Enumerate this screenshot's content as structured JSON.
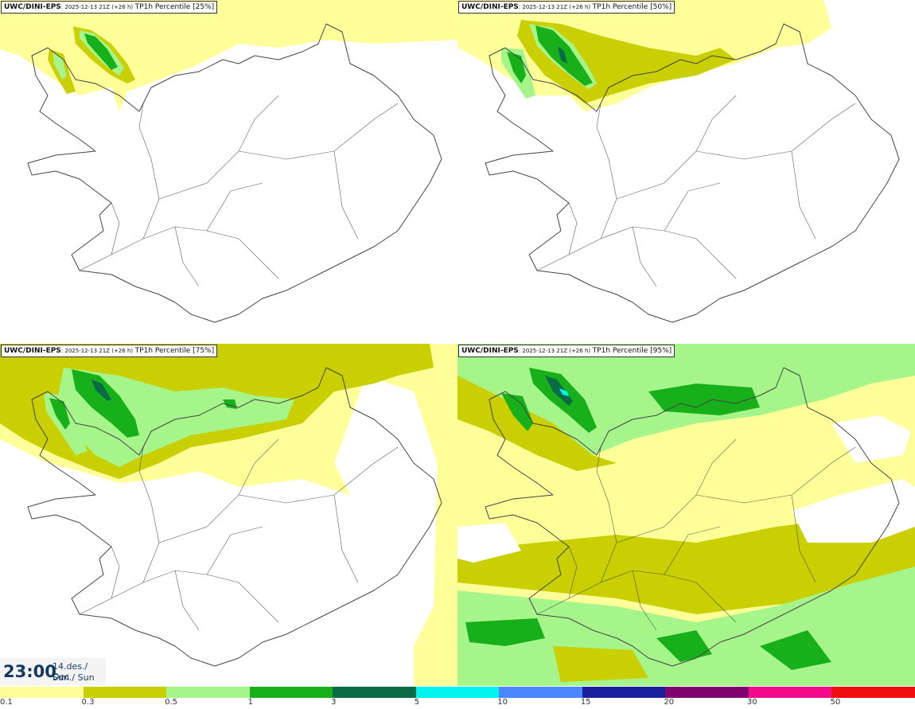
{
  "panels": [
    {
      "model": "UWC/DINI-EPS",
      "run": ": 2025-12-13 21Z (+26 h)",
      "label": "TP1h Percentile [25%]"
    },
    {
      "model": "UWC/DINI-EPS",
      "run": ": 2025-12-13 21Z (+26 h)",
      "label": "TP1h Percentile [50%]"
    },
    {
      "model": "UWC/DINI-EPS",
      "run": ": 2025-12-13 21Z (+26 h)",
      "label": "TP1h Percentile [75%]"
    },
    {
      "model": "UWC/DINI-EPS",
      "run": ": 2025-12-13 21Z (+26 h)",
      "label": "TP1h Percentile [95%]"
    }
  ],
  "clock": {
    "time": "23:00",
    "date_line1": "14.des./ Dec",
    "date_line2": "Sun./ Sun"
  },
  "legend": {
    "colors": [
      "#ffff9a",
      "#c9cf00",
      "#a6f58a",
      "#17b01a",
      "#0b6b45",
      "#00f2f2",
      "#4a86ff",
      "#1a1f9e",
      "#800070",
      "#f20a8a",
      "#f20d0d"
    ],
    "ticks": [
      "0.1",
      "0.3",
      "0.5",
      "1",
      "3",
      "5",
      "10",
      "15",
      "20",
      "30",
      "50"
    ]
  },
  "map_style": {
    "coast": "#444444",
    "roads": "#333333"
  }
}
